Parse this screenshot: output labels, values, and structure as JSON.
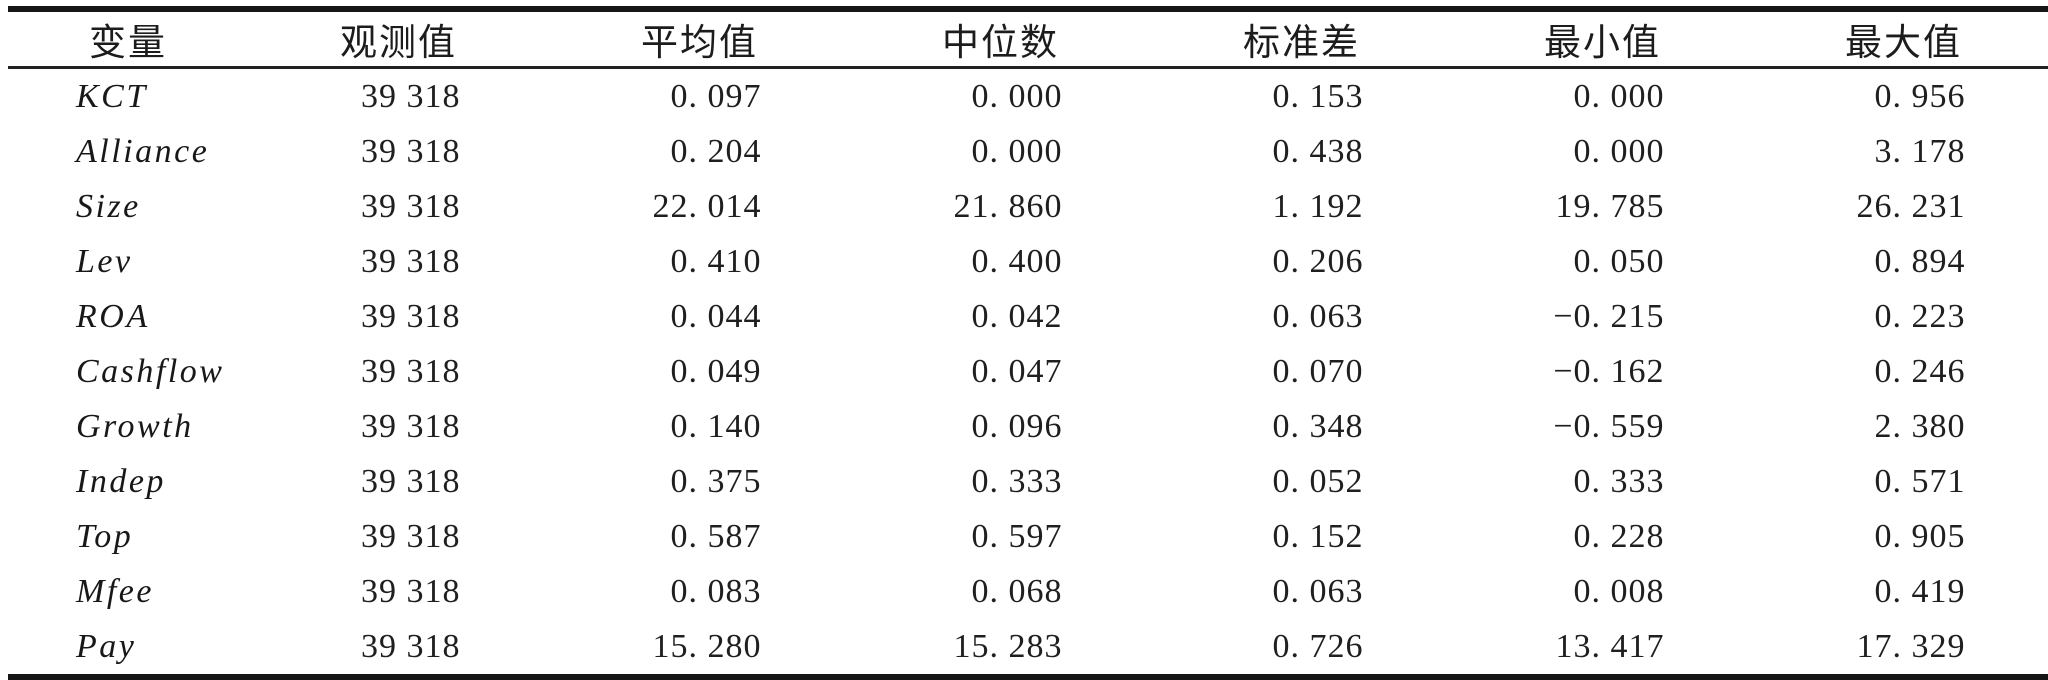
{
  "table": {
    "headers": {
      "variable": "变量",
      "observations": "观测值",
      "mean": "平均值",
      "median": "中位数",
      "std_dev": "标准差",
      "min": "最小值",
      "max": "最大值"
    },
    "rows": [
      [
        "KCT",
        "39 318",
        "0. 097",
        "0. 000",
        "0. 153",
        "0. 000",
        "0. 956"
      ],
      [
        "Alliance",
        "39 318",
        "0. 204",
        "0. 000",
        "0. 438",
        "0. 000",
        "3. 178"
      ],
      [
        "Size",
        "39 318",
        "22. 014",
        "21. 860",
        "1. 192",
        "19. 785",
        "26. 231"
      ],
      [
        "Lev",
        "39 318",
        "0. 410",
        "0. 400",
        "0. 206",
        "0. 050",
        "0. 894"
      ],
      [
        "ROA",
        "39 318",
        "0. 044",
        "0. 042",
        "0. 063",
        "−0. 215",
        "0. 223"
      ],
      [
        "Cashflow",
        "39 318",
        "0. 049",
        "0. 047",
        "0. 070",
        "−0. 162",
        "0. 246"
      ],
      [
        "Growth",
        "39 318",
        "0. 140",
        "0. 096",
        "0. 348",
        "−0. 559",
        "2. 380"
      ],
      [
        "Indep",
        "39 318",
        "0. 375",
        "0. 333",
        "0. 052",
        "0. 333",
        "0. 571"
      ],
      [
        "Top",
        "39 318",
        "0. 587",
        "0. 597",
        "0. 152",
        "0. 228",
        "0. 905"
      ],
      [
        "Mfee",
        "39 318",
        "0. 083",
        "0. 068",
        "0. 063",
        "0. 008",
        "0. 419"
      ],
      [
        "Pay",
        "39 318",
        "15. 280",
        "15. 283",
        "0. 726",
        "13. 417",
        "17. 329"
      ]
    ]
  }
}
